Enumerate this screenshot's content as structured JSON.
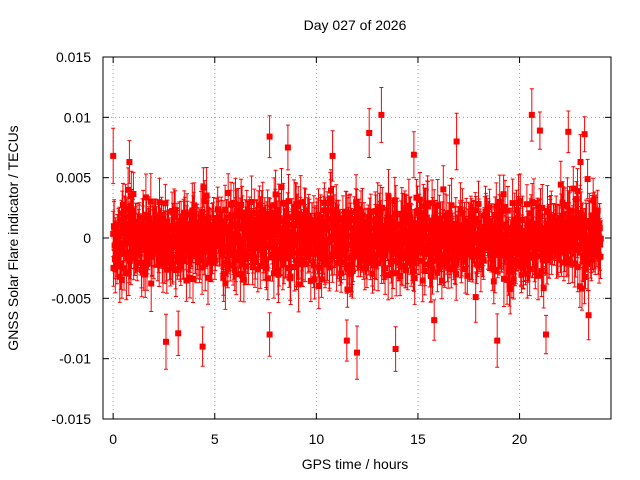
{
  "chart_data": {
    "type": "scatter",
    "title": "Day 027 of 2026",
    "xlabel": "GPS time / hours",
    "ylabel": "GNSS Solar Flare indicator / TECUs",
    "xlim": [
      -0.5,
      24.5
    ],
    "ylim": [
      -0.015,
      0.015
    ],
    "x_ticks": [
      0,
      5,
      10,
      15,
      20
    ],
    "x_tick_labels": [
      "0",
      "5",
      "10",
      "15",
      "20"
    ],
    "y_ticks": [
      -0.015,
      -0.01,
      -0.005,
      0,
      0.005,
      0.01,
      0.015
    ],
    "y_tick_labels": [
      "-0.015",
      "-0.01",
      "-0.005",
      "0",
      "0.005",
      "0.01",
      "0.015"
    ],
    "grid": true,
    "series_color": "#ff0000",
    "series": [
      {
        "marker": "square",
        "error_bars": true,
        "x_start": 0.0,
        "x_end": 24.0,
        "y_spread": 0.0035,
        "typical_error": 0.0018,
        "outliers": [
          {
            "x": 0.0,
            "y": 0.0068
          },
          {
            "x": 0.8,
            "y": 0.0063
          },
          {
            "x": 2.6,
            "y": -0.0086
          },
          {
            "x": 3.2,
            "y": -0.0079
          },
          {
            "x": 4.4,
            "y": -0.009
          },
          {
            "x": 7.7,
            "y": 0.0084
          },
          {
            "x": 7.7,
            "y": -0.008
          },
          {
            "x": 8.6,
            "y": 0.0075
          },
          {
            "x": 10.8,
            "y": 0.0068
          },
          {
            "x": 11.5,
            "y": -0.0085
          },
          {
            "x": 12.0,
            "y": -0.0095
          },
          {
            "x": 12.6,
            "y": 0.0087
          },
          {
            "x": 13.2,
            "y": 0.0102
          },
          {
            "x": 13.9,
            "y": -0.0092
          },
          {
            "x": 14.8,
            "y": 0.0069
          },
          {
            "x": 15.8,
            "y": -0.0068
          },
          {
            "x": 16.9,
            "y": 0.008
          },
          {
            "x": 18.9,
            "y": -0.0085
          },
          {
            "x": 20.6,
            "y": 0.0102
          },
          {
            "x": 21.0,
            "y": 0.0089
          },
          {
            "x": 21.3,
            "y": -0.008
          },
          {
            "x": 22.4,
            "y": 0.0088
          },
          {
            "x": 23.0,
            "y": 0.0063
          },
          {
            "x": 23.2,
            "y": 0.0086
          },
          {
            "x": 23.4,
            "y": -0.0064
          }
        ]
      }
    ]
  }
}
